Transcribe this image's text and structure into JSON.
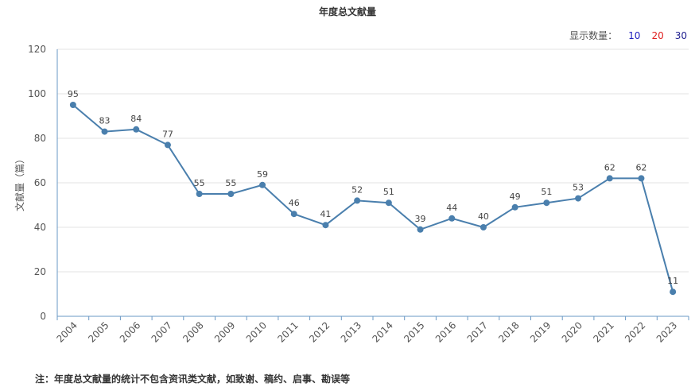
{
  "chart_data": {
    "type": "line",
    "title": "年度总文献量",
    "ylabel": "文献量（篇）",
    "xlabel": "",
    "ylim": [
      0,
      120
    ],
    "yticks": [
      0,
      20,
      40,
      60,
      80,
      100,
      120
    ],
    "grid": true,
    "categories": [
      "2004",
      "2005",
      "2006",
      "2007",
      "2008",
      "2009",
      "2010",
      "2011",
      "2012",
      "2013",
      "2014",
      "2015",
      "2016",
      "2017",
      "2018",
      "2019",
      "2020",
      "2021",
      "2022",
      "2023"
    ],
    "values": [
      95,
      83,
      84,
      77,
      55,
      55,
      59,
      46,
      41,
      52,
      51,
      39,
      44,
      40,
      49,
      51,
      53,
      62,
      62,
      11
    ],
    "line_color": "#4a7fad"
  },
  "display_count": {
    "label": "显示数量：",
    "options": [
      {
        "text": "10",
        "color": "#1f1fbf"
      },
      {
        "text": "20",
        "color": "#e0201f"
      },
      {
        "text": "30",
        "color": "#1f1f8f"
      }
    ]
  },
  "footnote": "注：年度总文献量的统计不包含资讯类文献，如致谢、稿约、启事、勘误等"
}
